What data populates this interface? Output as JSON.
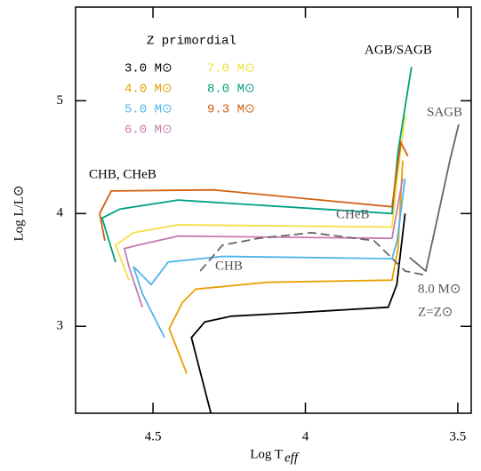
{
  "chart_data": {
    "type": "line",
    "x_label": "Log T",
    "x_label_sub": "eff",
    "y_label": "Log L/L⊙",
    "legend_title": "Z primordial",
    "xlim": [
      4.754,
      3.456
    ],
    "ylim": [
      2.23,
      5.83
    ],
    "xticks": [
      4.5,
      {
        "value": 4,
        "label": "4"
      },
      3.5
    ],
    "yticks": [
      3,
      4,
      5
    ],
    "series": [
      {
        "name": "3.0 M⊙",
        "color": "#000000",
        "x": [
          4.31,
          4.374,
          4.33,
          4.243,
          4.038,
          3.728,
          3.7,
          3.673
        ],
        "values": [
          2.23,
          2.9,
          3.04,
          3.09,
          3.12,
          3.17,
          3.37,
          4.0
        ]
      },
      {
        "name": "4.0 M⊙",
        "color": "#e8a000",
        "x": [
          4.389,
          4.447,
          4.404,
          4.36,
          4.126,
          3.716,
          3.696,
          3.681
        ],
        "values": [
          2.58,
          2.98,
          3.21,
          3.33,
          3.39,
          3.41,
          3.69,
          4.47
        ]
      },
      {
        "name": "5.0 M⊙",
        "color": "#4fb4e8",
        "x": [
          4.462,
          4.535,
          4.564,
          4.506,
          4.45,
          4.272,
          3.716,
          3.699,
          3.673
        ],
        "values": [
          2.9,
          3.29,
          3.53,
          3.37,
          3.57,
          3.62,
          3.6,
          3.76,
          4.31
        ]
      },
      {
        "name": "6.0 M⊙",
        "color": "#c87ab0",
        "x": [
          4.535,
          4.579,
          4.594,
          4.55,
          4.418,
          3.716,
          3.681
        ],
        "values": [
          3.17,
          3.53,
          3.69,
          3.72,
          3.8,
          3.78,
          4.31
        ]
      },
      {
        "name": "7.0 M⊙",
        "color": "#f0e040",
        "x": [
          4.579,
          4.623,
          4.564,
          4.418,
          3.716,
          3.699,
          3.673
        ],
        "values": [
          3.41,
          3.72,
          3.83,
          3.9,
          3.88,
          4.31,
          4.87
        ]
      },
      {
        "name": "8.0 M⊙",
        "color": "#00a080",
        "x": [
          4.623,
          4.667,
          4.608,
          4.418,
          3.716,
          3.696,
          3.652
        ],
        "values": [
          3.57,
          3.96,
          4.04,
          4.12,
          4.0,
          4.55,
          5.3
        ]
      },
      {
        "name": "9.3 M⊙",
        "color": "#d06010",
        "x": [
          4.658,
          4.675,
          4.637,
          4.301,
          3.716,
          3.687,
          3.664
        ],
        "values": [
          3.76,
          4.0,
          4.2,
          4.21,
          4.06,
          4.63,
          4.51
        ]
      },
      {
        "color": "#666666",
        "dashed": true,
        "x": [
          4.345,
          4.272,
          4.155,
          3.98,
          3.775,
          3.673,
          3.6
        ],
        "values": [
          3.49,
          3.72,
          3.78,
          3.83,
          3.76,
          3.49,
          3.45
        ]
      },
      {
        "color": "#666666",
        "x": [
          3.658,
          3.605,
          3.57,
          3.526,
          3.497
        ],
        "values": [
          3.61,
          3.49,
          3.92,
          4.47,
          4.79
        ]
      }
    ],
    "annotations": [
      "AGB/SAGB",
      "SAGB",
      "CHB, CHeB",
      "CHeB",
      "CHB",
      "8.0 M⊙",
      "Z=Z⊙"
    ]
  }
}
